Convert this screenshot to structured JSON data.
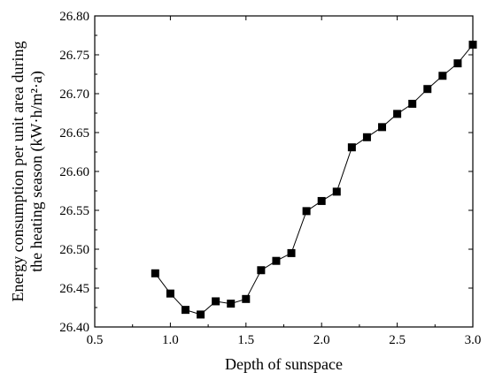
{
  "chart_data": {
    "type": "line",
    "xlabel": "Depth of sunspace",
    "ylabel_lines": [
      "Energy consumption per unit area during",
      "the heating season (kW·h/m²·a)"
    ],
    "xlim": [
      0.5,
      3.0
    ],
    "ylim": [
      26.4,
      26.8
    ],
    "xticks": [
      0.5,
      1.0,
      1.5,
      2.0,
      2.5,
      3.0
    ],
    "xtick_labels": [
      "0.5",
      "1.0",
      "1.5",
      "2.0",
      "2.5",
      "3.0"
    ],
    "yticks": [
      26.4,
      26.45,
      26.5,
      26.55,
      26.6,
      26.65,
      26.7,
      26.75,
      26.8
    ],
    "ytick_labels": [
      "26.40",
      "26.45",
      "26.50",
      "26.55",
      "26.60",
      "26.65",
      "26.70",
      "26.75",
      "26.80"
    ],
    "grid": false,
    "marker": "square",
    "colors": {
      "series": "#000000",
      "axes": "#000000"
    },
    "series": [
      {
        "x": [
          0.9,
          1.0,
          1.1,
          1.2,
          1.3,
          1.4,
          1.5,
          1.6,
          1.7,
          1.8,
          1.9,
          2.0,
          2.1,
          2.2,
          2.3,
          2.4,
          2.5,
          2.6,
          2.7,
          2.8,
          2.9,
          3.0
        ],
        "y": [
          26.469,
          26.443,
          26.422,
          26.416,
          26.433,
          26.43,
          26.436,
          26.473,
          26.485,
          26.495,
          26.549,
          26.562,
          26.574,
          26.631,
          26.644,
          26.657,
          26.674,
          26.687,
          26.706,
          26.723,
          26.739,
          26.763
        ]
      }
    ]
  }
}
